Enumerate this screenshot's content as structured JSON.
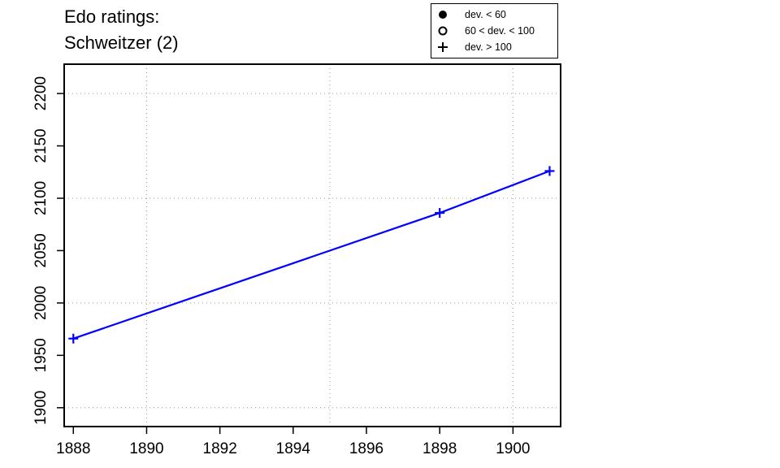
{
  "title": [
    "Edo ratings:",
    "Schweitzer (2)"
  ],
  "legend": {
    "items": [
      {
        "symbol": "filled-circle",
        "label": "dev. < 60"
      },
      {
        "symbol": "open-circle",
        "label": "60 < dev. < 100"
      },
      {
        "symbol": "plus",
        "label": "dev. > 100"
      }
    ]
  },
  "colors": {
    "series": "#0000ff",
    "axis": "#000000",
    "grid": "#999999"
  },
  "chart_data": {
    "type": "line",
    "title": "Edo ratings: Schweitzer (2)",
    "xlabel": "",
    "ylabel": "",
    "xlim": [
      1887.75,
      1901.3
    ],
    "ylim": [
      1882,
      2228
    ],
    "xticks": [
      1888,
      1890,
      1892,
      1894,
      1896,
      1898,
      1900
    ],
    "yticks": [
      1900,
      1950,
      2000,
      2050,
      2100,
      2150,
      2200
    ],
    "xgrid": [
      1890,
      1895,
      1900
    ],
    "ygrid": [
      1900,
      2000,
      2100,
      2200
    ],
    "grid": true,
    "legend_position": "top-right",
    "series": [
      {
        "marker": "plus",
        "points": [
          {
            "x": 1888,
            "y": 1966
          },
          {
            "x": 1898,
            "y": 2086
          },
          {
            "x": 1901,
            "y": 2126
          }
        ]
      }
    ]
  }
}
